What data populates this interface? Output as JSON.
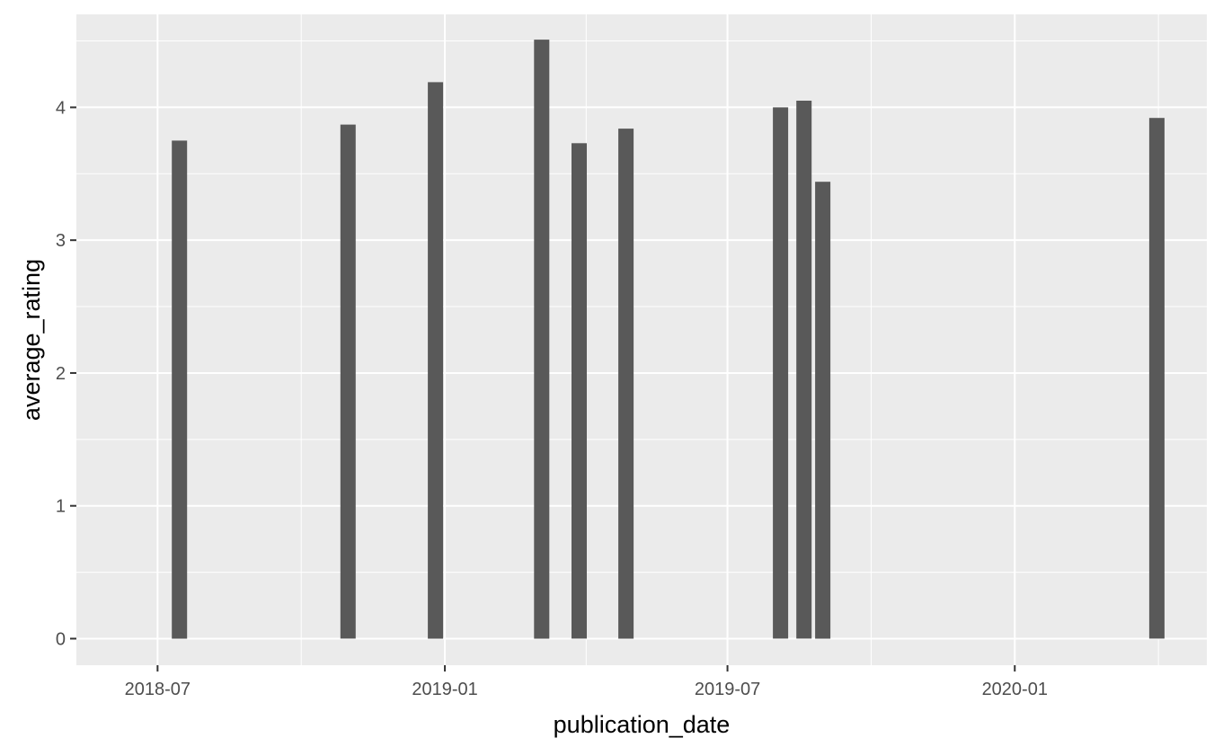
{
  "chart_data": {
    "type": "bar",
    "title": "",
    "xlabel": "publication_date",
    "ylabel": "average_rating",
    "x_ticks": [
      "2018-07-01",
      "2019-01-01",
      "2019-07-01",
      "2020-01-01"
    ],
    "x_tick_labels": [
      "2018-07",
      "2019-01",
      "2019-07",
      "2020-01"
    ],
    "y_ticks": [
      0,
      1,
      2,
      3,
      4
    ],
    "xlim": [
      "2018-05-10",
      "2020-05-03"
    ],
    "ylim": [
      -0.2,
      4.7
    ],
    "grid": true,
    "bar_color": "#595959",
    "panel_color": "#ebebeb",
    "grid_color": "#ffffff",
    "series": [
      {
        "x": [
          "2018-07-15",
          "2018-10-31",
          "2018-12-26",
          "2019-03-04",
          "2019-03-28",
          "2019-04-27",
          "2019-08-04",
          "2019-08-19",
          "2019-08-31",
          "2020-04-01"
        ],
        "values": [
          3.75,
          3.87,
          4.19,
          4.51,
          3.73,
          3.84,
          4.0,
          4.05,
          3.44,
          3.92
        ]
      }
    ]
  }
}
